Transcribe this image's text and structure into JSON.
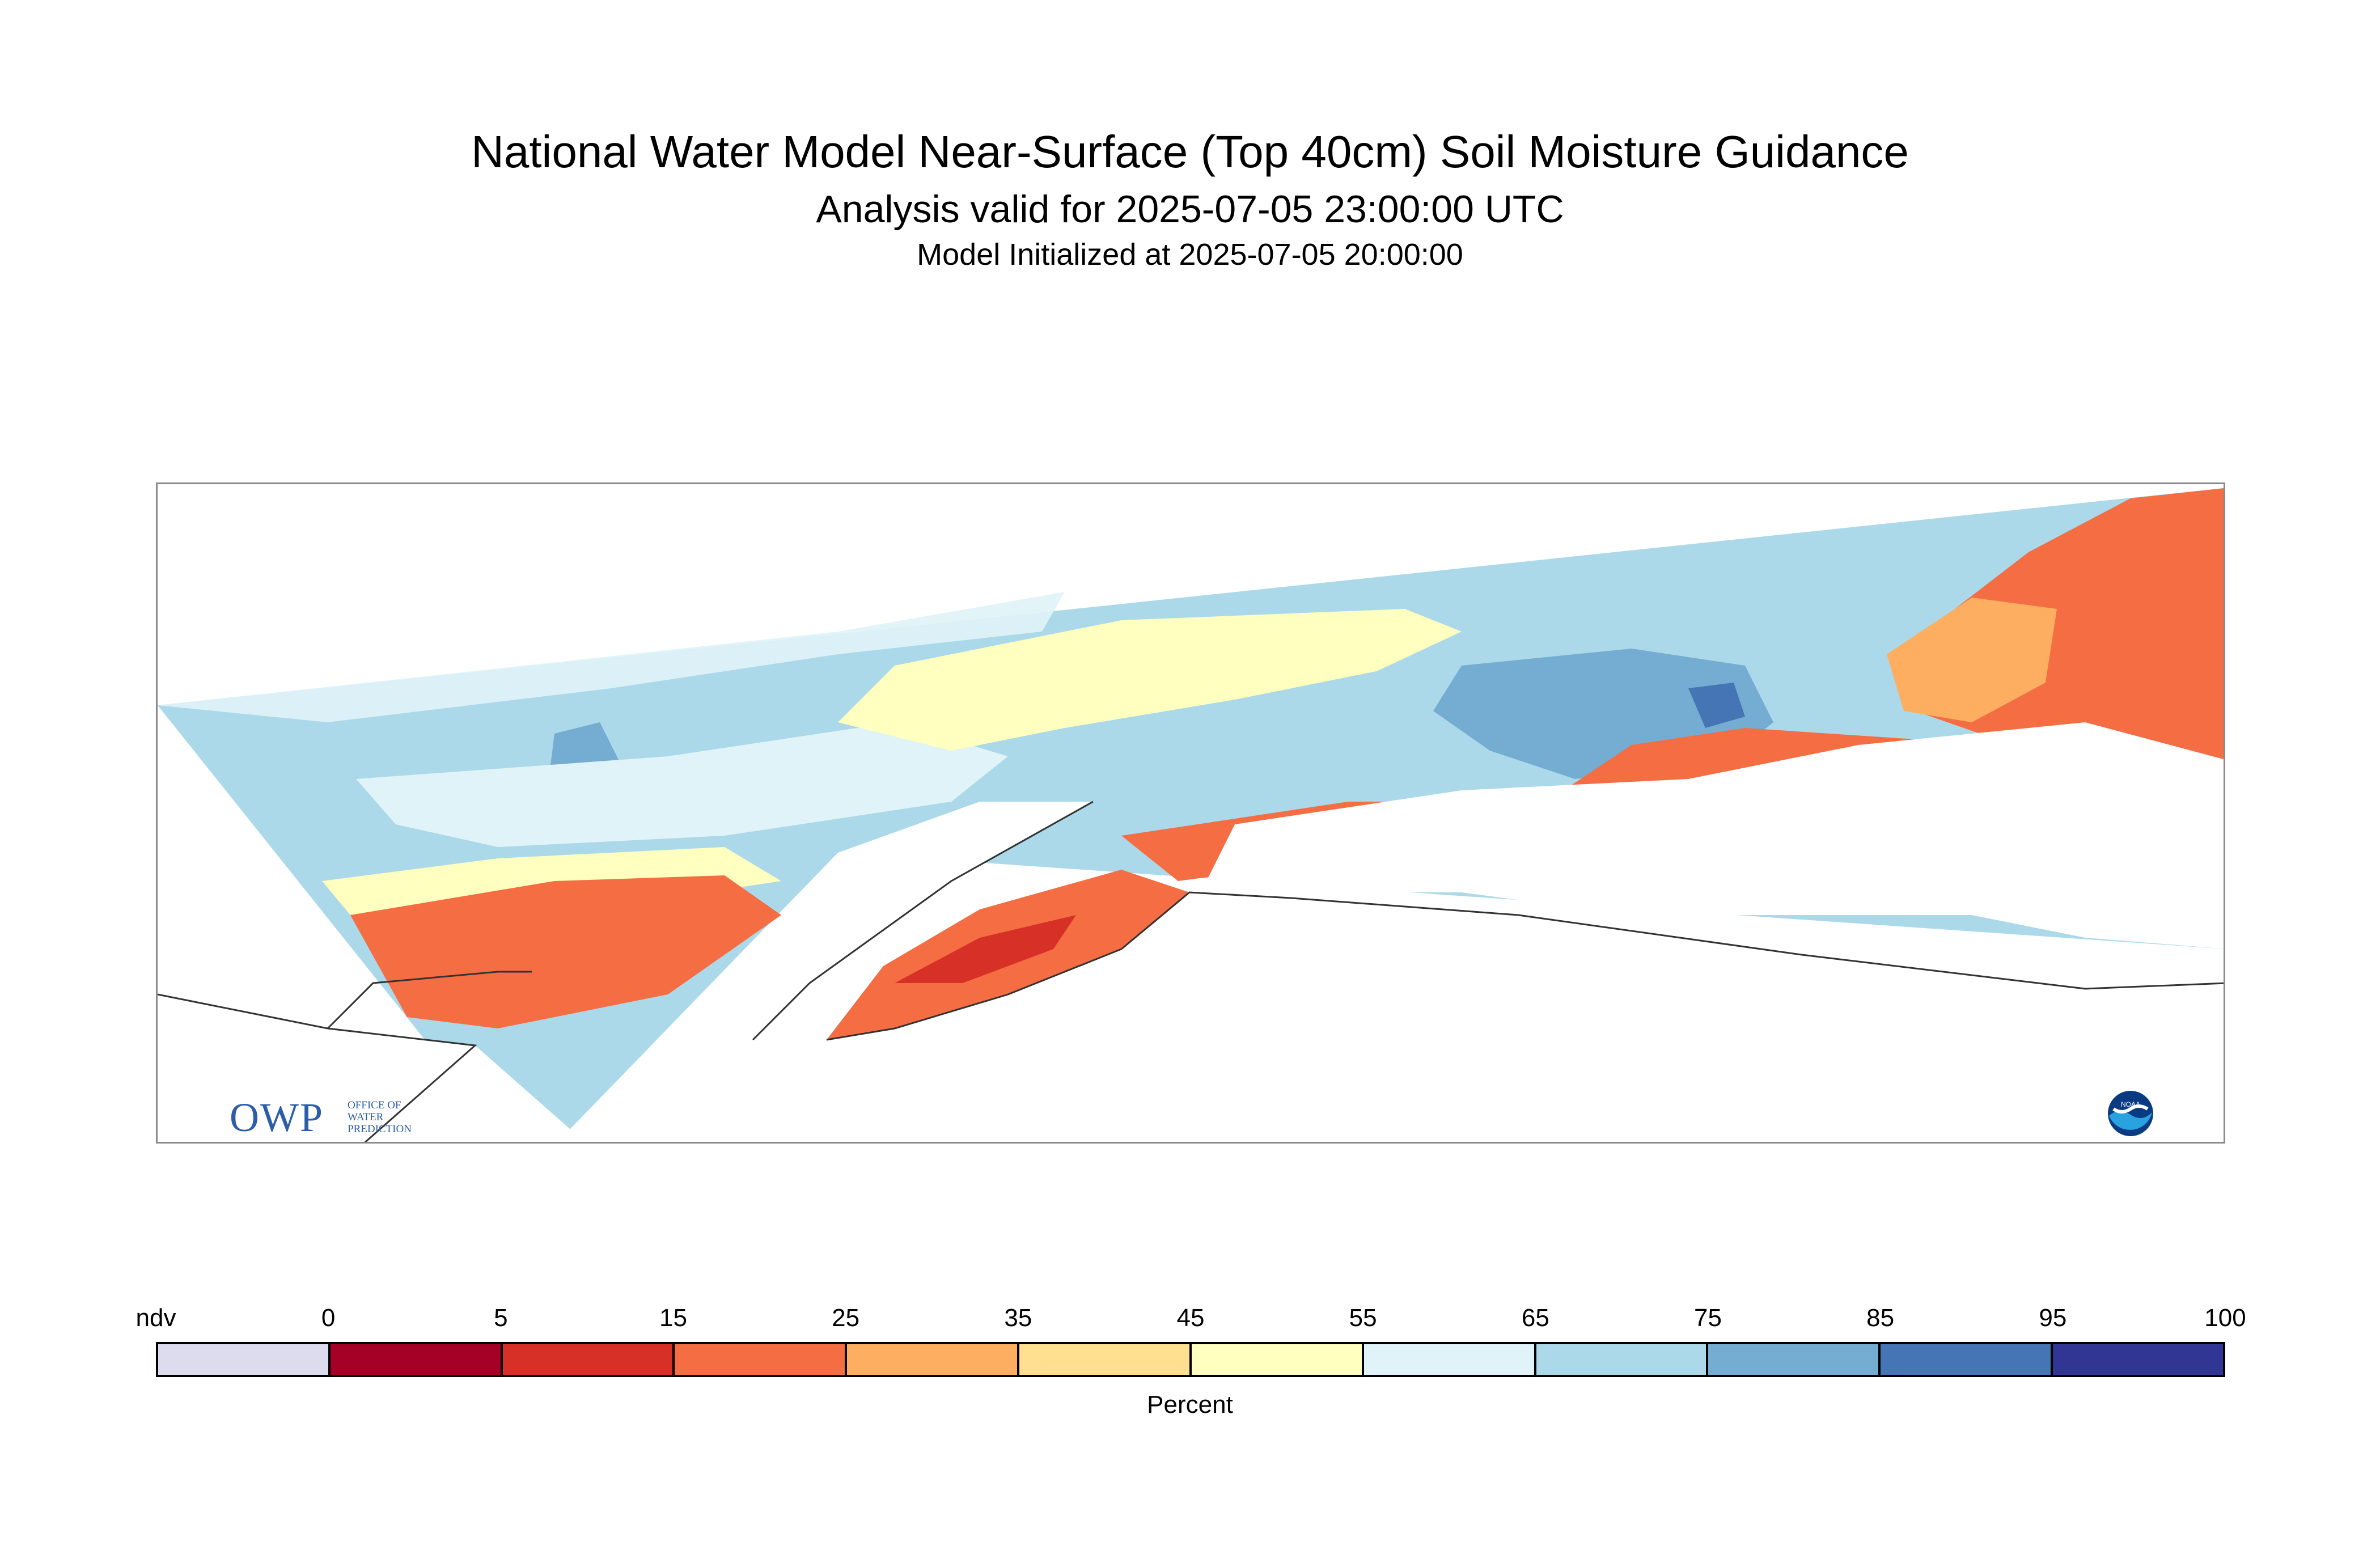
{
  "header": {
    "title": "National Water Model Near-Surface (Top 40cm) Soil Moisture Guidance",
    "subtitle": "Analysis valid for 2025-07-05 23:00:00 UTC",
    "init_line": "Model Initialized at 2025-07-05 20:00:00"
  },
  "logos": {
    "owp": {
      "letters": "OWP",
      "line1": "OFFICE OF",
      "line2": "WATER",
      "line3": "PREDICTION"
    },
    "noaa": {
      "text": "NOAA"
    }
  },
  "legend": {
    "unit": "Percent",
    "ticks": [
      "ndv",
      "0",
      "5",
      "15",
      "25",
      "35",
      "45",
      "55",
      "65",
      "75",
      "85",
      "95",
      "100"
    ],
    "bins": [
      {
        "range": "ndv",
        "color": "#dcdcee"
      },
      {
        "range": "0-5",
        "color": "#a50026"
      },
      {
        "range": "5-15",
        "color": "#d73027"
      },
      {
        "range": "15-25",
        "color": "#f46d43"
      },
      {
        "range": "25-35",
        "color": "#fdae61"
      },
      {
        "range": "35-45",
        "color": "#fee090"
      },
      {
        "range": "45-55",
        "color": "#ffffbf"
      },
      {
        "range": "55-65",
        "color": "#e0f3f8"
      },
      {
        "range": "65-75",
        "color": "#abd9e9"
      },
      {
        "range": "75-85",
        "color": "#74add1"
      },
      {
        "range": "85-95",
        "color": "#4575b4"
      },
      {
        "range": "95-100",
        "color": "#313695"
      }
    ]
  },
  "colors": {
    "water_background": "#ffffff",
    "coastline": "#333333",
    "frame": "#8a8a8a",
    "logo_blue": "#2b5da8"
  }
}
